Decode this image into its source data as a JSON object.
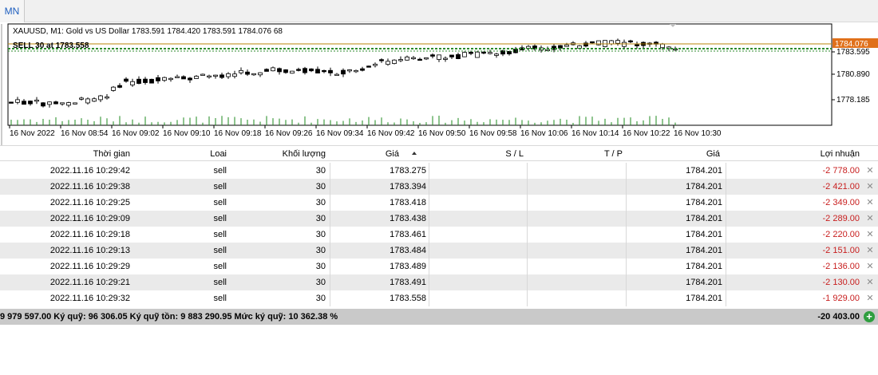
{
  "toolbar": {
    "timeframe_label": "MN"
  },
  "chart": {
    "info_line": "XAUUSD, M1:  Gold vs US Dollar  1783.591 1784.420 1783.591 1784.076  68",
    "overlay_label": "SELL 30 at 1783.558",
    "current_price_label": "1784.076",
    "price_labels": [
      "1783.595",
      "1780.890",
      "1778.185"
    ],
    "time_labels": [
      "16 Nov 2022",
      "16 Nov 08:54",
      "16 Nov 09:02",
      "16 Nov 09:10",
      "16 Nov 09:18",
      "16 Nov 09:26",
      "16 Nov 09:34",
      "16 Nov 09:42",
      "16 Nov 09:50",
      "16 Nov 09:58",
      "16 Nov 10:06",
      "16 Nov 10:14",
      "16 Nov 10:22",
      "16 Nov 10:30"
    ],
    "colors": {
      "price_line": "#b8860b",
      "order_line": "#2e8b2e",
      "current_price_bg": "#e0701a",
      "volume": "#1e8a1e"
    }
  },
  "table": {
    "headers": {
      "time": "Thời gian",
      "type": "Loai",
      "volume": "Khối lượng",
      "price": "Giá",
      "sl": "S / L",
      "tp": "T / P",
      "price2": "Giá",
      "profit": "Lợi nhuận"
    },
    "rows": [
      {
        "time": "2022.11.16 10:29:42",
        "type": "sell",
        "volume": "30",
        "price": "1783.275",
        "sl": "",
        "tp": "",
        "price2": "1784.201",
        "profit": "-2 778.00"
      },
      {
        "time": "2022.11.16 10:29:38",
        "type": "sell",
        "volume": "30",
        "price": "1783.394",
        "sl": "",
        "tp": "",
        "price2": "1784.201",
        "profit": "-2 421.00"
      },
      {
        "time": "2022.11.16 10:29:25",
        "type": "sell",
        "volume": "30",
        "price": "1783.418",
        "sl": "",
        "tp": "",
        "price2": "1784.201",
        "profit": "-2 349.00"
      },
      {
        "time": "2022.11.16 10:29:09",
        "type": "sell",
        "volume": "30",
        "price": "1783.438",
        "sl": "",
        "tp": "",
        "price2": "1784.201",
        "profit": "-2 289.00"
      },
      {
        "time": "2022.11.16 10:29:18",
        "type": "sell",
        "volume": "30",
        "price": "1783.461",
        "sl": "",
        "tp": "",
        "price2": "1784.201",
        "profit": "-2 220.00"
      },
      {
        "time": "2022.11.16 10:29:13",
        "type": "sell",
        "volume": "30",
        "price": "1783.484",
        "sl": "",
        "tp": "",
        "price2": "1784.201",
        "profit": "-2 151.00"
      },
      {
        "time": "2022.11.16 10:29:29",
        "type": "sell",
        "volume": "30",
        "price": "1783.489",
        "sl": "",
        "tp": "",
        "price2": "1784.201",
        "profit": "-2 136.00"
      },
      {
        "time": "2022.11.16 10:29:21",
        "type": "sell",
        "volume": "30",
        "price": "1783.491",
        "sl": "",
        "tp": "",
        "price2": "1784.201",
        "profit": "-2 130.00"
      },
      {
        "time": "2022.11.16 10:29:32",
        "type": "sell",
        "volume": "30",
        "price": "1783.558",
        "sl": "",
        "tp": "",
        "price2": "1784.201",
        "profit": "-1 929.00"
      }
    ],
    "close_glyph": "✕"
  },
  "summary": {
    "text": "9 979 597.00  Ký quỹ: 96 306.05  Ký quỹ tồn: 9 883 290.95  Mức ký quỹ: 10 362.38 %",
    "total": "-20 403.00",
    "add_glyph": "+"
  }
}
